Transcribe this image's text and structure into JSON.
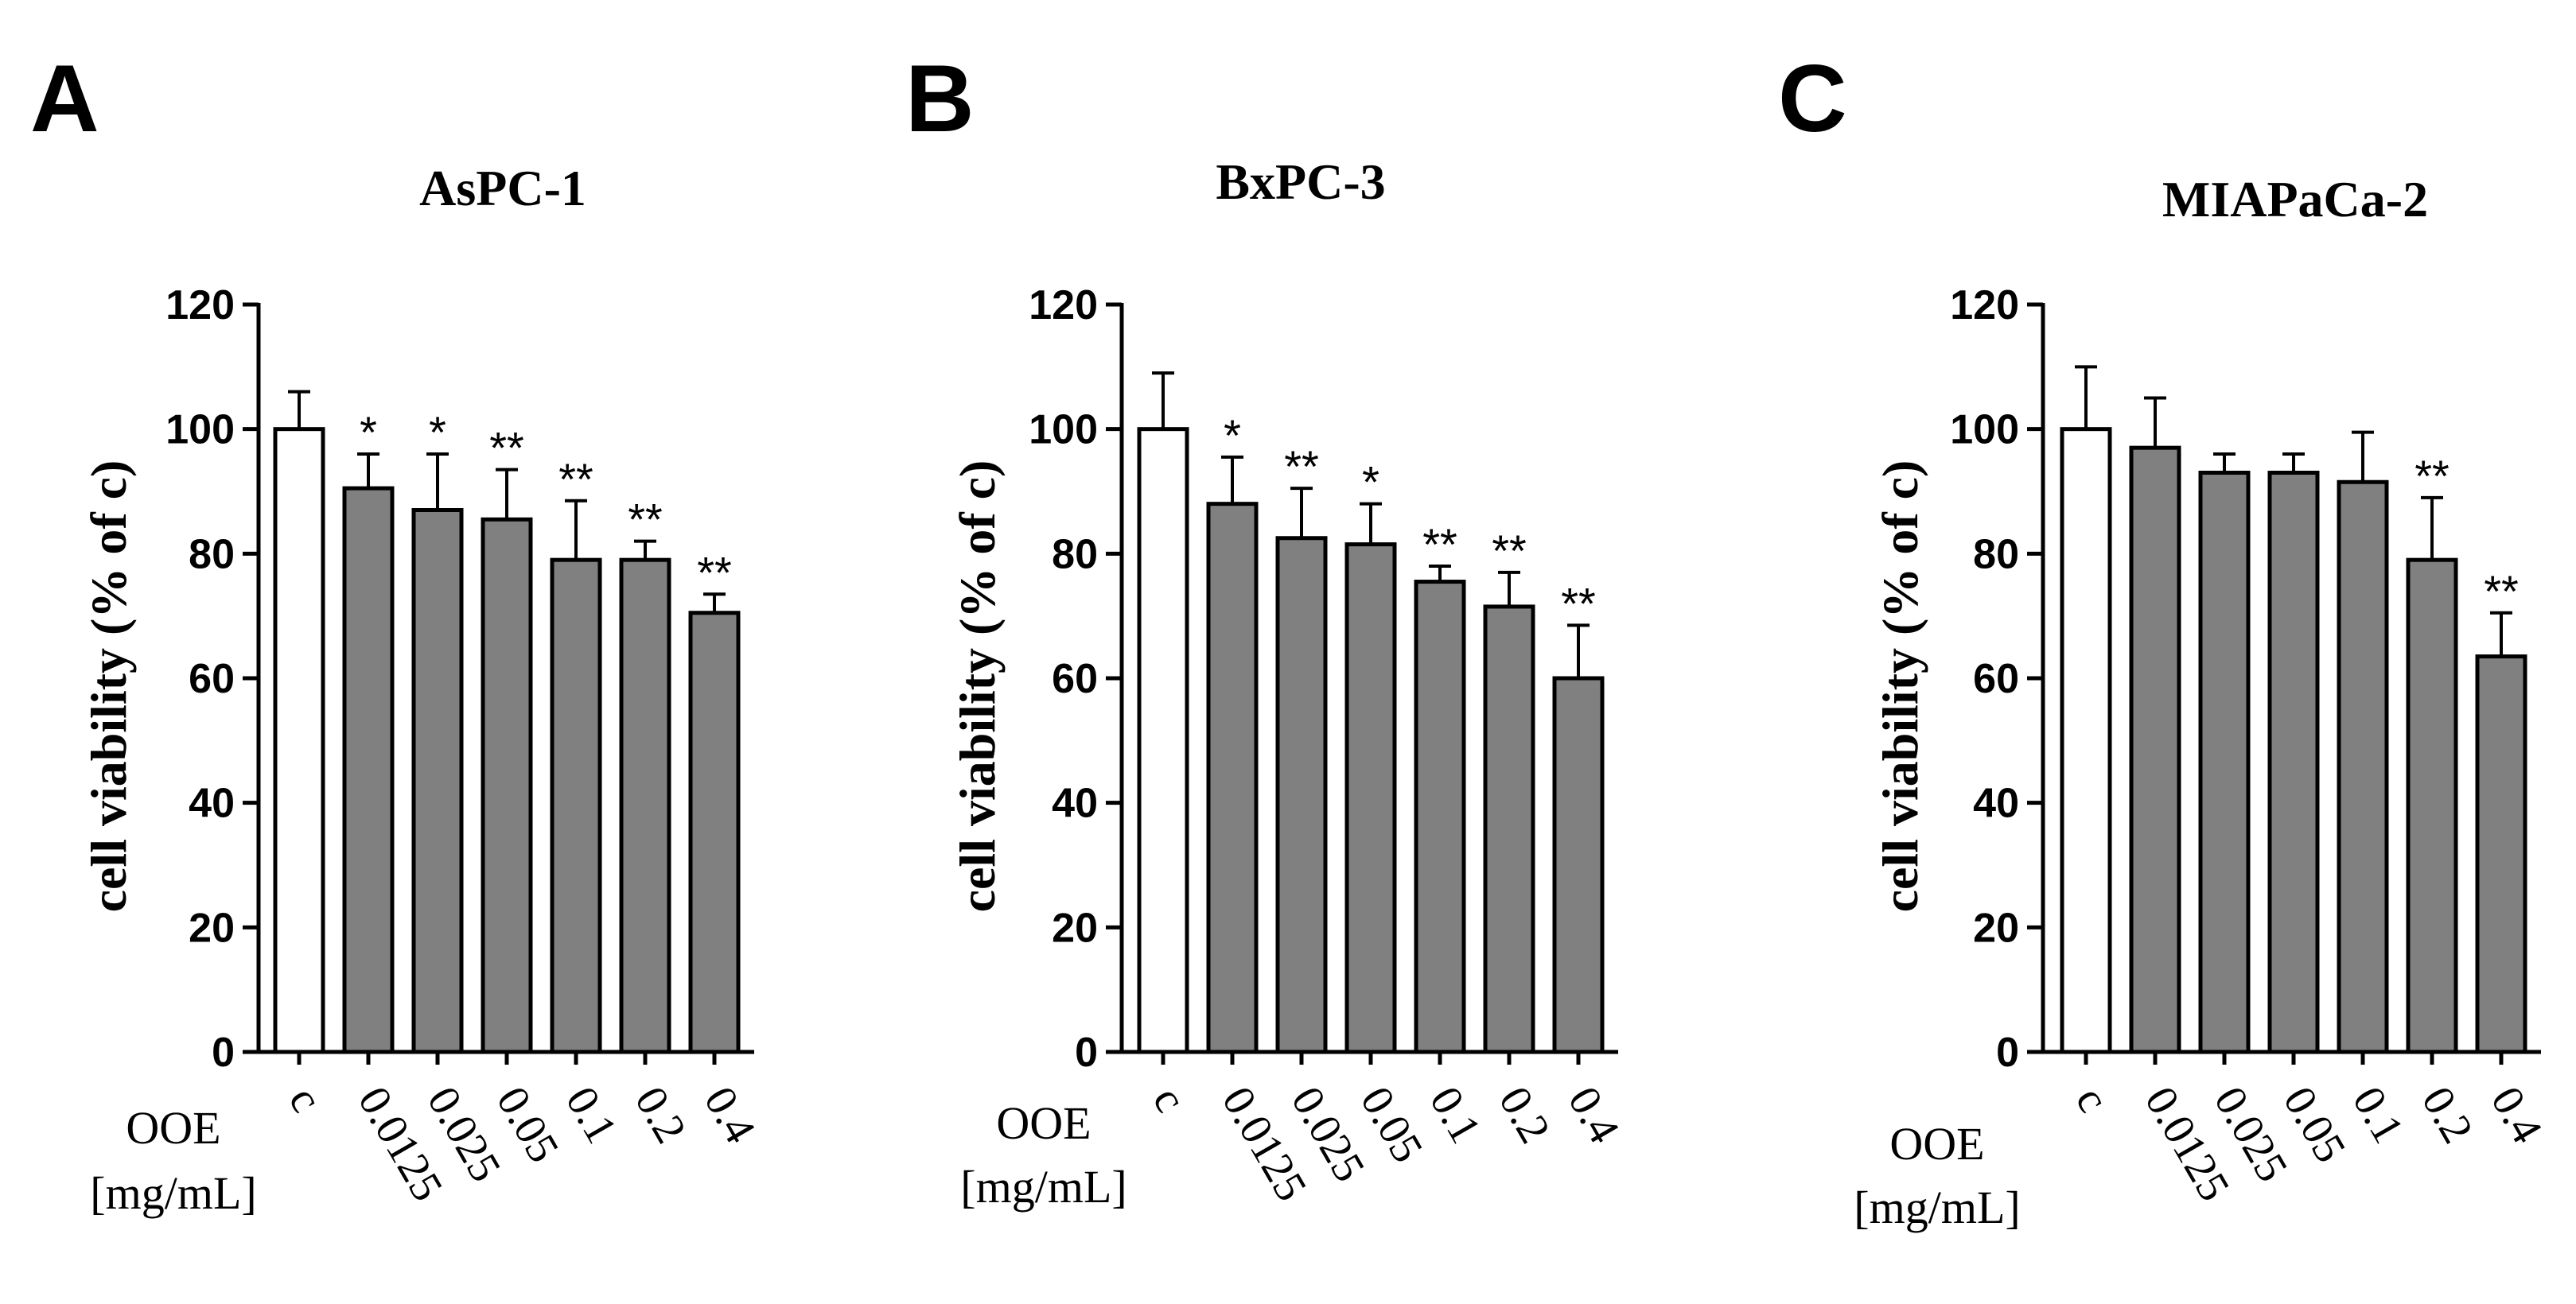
{
  "figure": {
    "x_axis_name": "OOE",
    "x_axis_unit": "[mg/mL]",
    "colors": {
      "control": "#ffffff",
      "treatment": "#808080",
      "axis": "#000000"
    }
  },
  "chart_data": [
    {
      "panel": "A",
      "type": "bar",
      "title": "AsPC-1",
      "xlabel": "OOE [mg/mL]",
      "ylabel": "cell viability (% of c)",
      "ylim": [
        0,
        120
      ],
      "yticks": [
        0,
        20,
        40,
        60,
        80,
        100,
        120
      ],
      "categories": [
        "c",
        "0.0125",
        "0.025",
        "0.05",
        "0.1",
        "0.2",
        "0.4"
      ],
      "values": [
        100,
        90.5,
        87,
        85.5,
        79,
        79,
        70.5
      ],
      "errors": [
        6,
        5.5,
        9,
        8,
        9.5,
        3,
        3
      ],
      "significance": [
        "",
        "*",
        "*",
        "**",
        "**",
        "**",
        "**"
      ]
    },
    {
      "panel": "B",
      "type": "bar",
      "title": "BxPC-3",
      "xlabel": "OOE [mg/mL]",
      "ylabel": "cell viability (% of c)",
      "ylim": [
        0,
        120
      ],
      "yticks": [
        0,
        20,
        40,
        60,
        80,
        100,
        120
      ],
      "categories": [
        "c",
        "0.0125",
        "0.025",
        "0.05",
        "0.1",
        "0.2",
        "0.4"
      ],
      "values": [
        100,
        88,
        82.5,
        81.5,
        75.5,
        71.5,
        60
      ],
      "errors": [
        9,
        7.5,
        8,
        6.5,
        2.5,
        5.5,
        8.5
      ],
      "significance": [
        "",
        "*",
        "**",
        "*",
        "**",
        "**",
        "**"
      ]
    },
    {
      "panel": "C",
      "type": "bar",
      "title": "MIAPaCa-2",
      "xlabel": "OOE [mg/mL]",
      "ylabel": "cell viability (% of c)",
      "ylim": [
        0,
        120
      ],
      "yticks": [
        0,
        20,
        40,
        60,
        80,
        100,
        120
      ],
      "categories": [
        "c",
        "0.0125",
        "0.025",
        "0.05",
        "0.1",
        "0.2",
        "0.4"
      ],
      "values": [
        100,
        97,
        93,
        93,
        91.5,
        79,
        63.5
      ],
      "errors": [
        10,
        8,
        3,
        3,
        8,
        10,
        7
      ],
      "significance": [
        "",
        "",
        "",
        "",
        "",
        "**",
        "**"
      ]
    }
  ]
}
